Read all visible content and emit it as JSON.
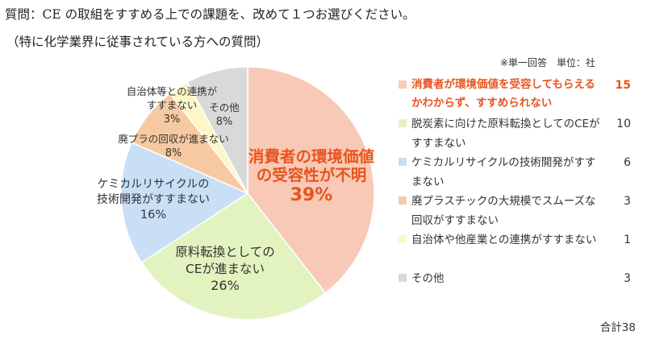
{
  "header": {
    "question": "質問：CE の取組をすすめる上での課題を、改めて１つお選びください。",
    "subnote": "（特に化学業界に従事されている方への質問）",
    "unit_note": "※単一回答　単位：社"
  },
  "chart_data": {
    "type": "pie",
    "start_angle_deg": 0,
    "direction": "clockwise",
    "slices": [
      {
        "label": "消費者が環境価値を受容してもらえるかわからず、すすめられない",
        "value": 15,
        "pct_label": "39%",
        "pie_label": [
          "消費者の環境価値",
          "の受容性が不明"
        ],
        "color": "#F8C9B6",
        "highlight": true
      },
      {
        "label": "脱炭素に向けた原料転換としてのCEがすすまない",
        "value": 10,
        "pct_label": "26%",
        "pie_label": [
          "原料転換としての",
          "CEが進まない"
        ],
        "color": "#E2F3C0",
        "highlight": false
      },
      {
        "label": "ケミカルリサイクルの技術開発がすすまない",
        "value": 6,
        "pct_label": "16%",
        "pie_label": [
          "ケミカルリサイクルの",
          "技術開発がすすまない"
        ],
        "color": "#C8DFF6",
        "highlight": false
      },
      {
        "label": "廃プラスチックの大規模でスムーズな回収がすすまない",
        "value": 3,
        "pct_label": "8%",
        "pie_label": [
          "廃プラの回収が進まない"
        ],
        "color": "#F7C9A2",
        "highlight": false
      },
      {
        "label": "自治体や他産業との連携がすすまない",
        "value": 1,
        "pct_label": "3%",
        "pie_label": [
          "自治体等との連携が",
          "すすまない"
        ],
        "color": "#FDF7C8",
        "highlight": false
      },
      {
        "label": "その他",
        "value": 3,
        "pct_label": "8%",
        "pie_label": [
          "その他"
        ],
        "color": "#D9D9D9",
        "highlight": false
      }
    ],
    "total_label": "合計38"
  }
}
